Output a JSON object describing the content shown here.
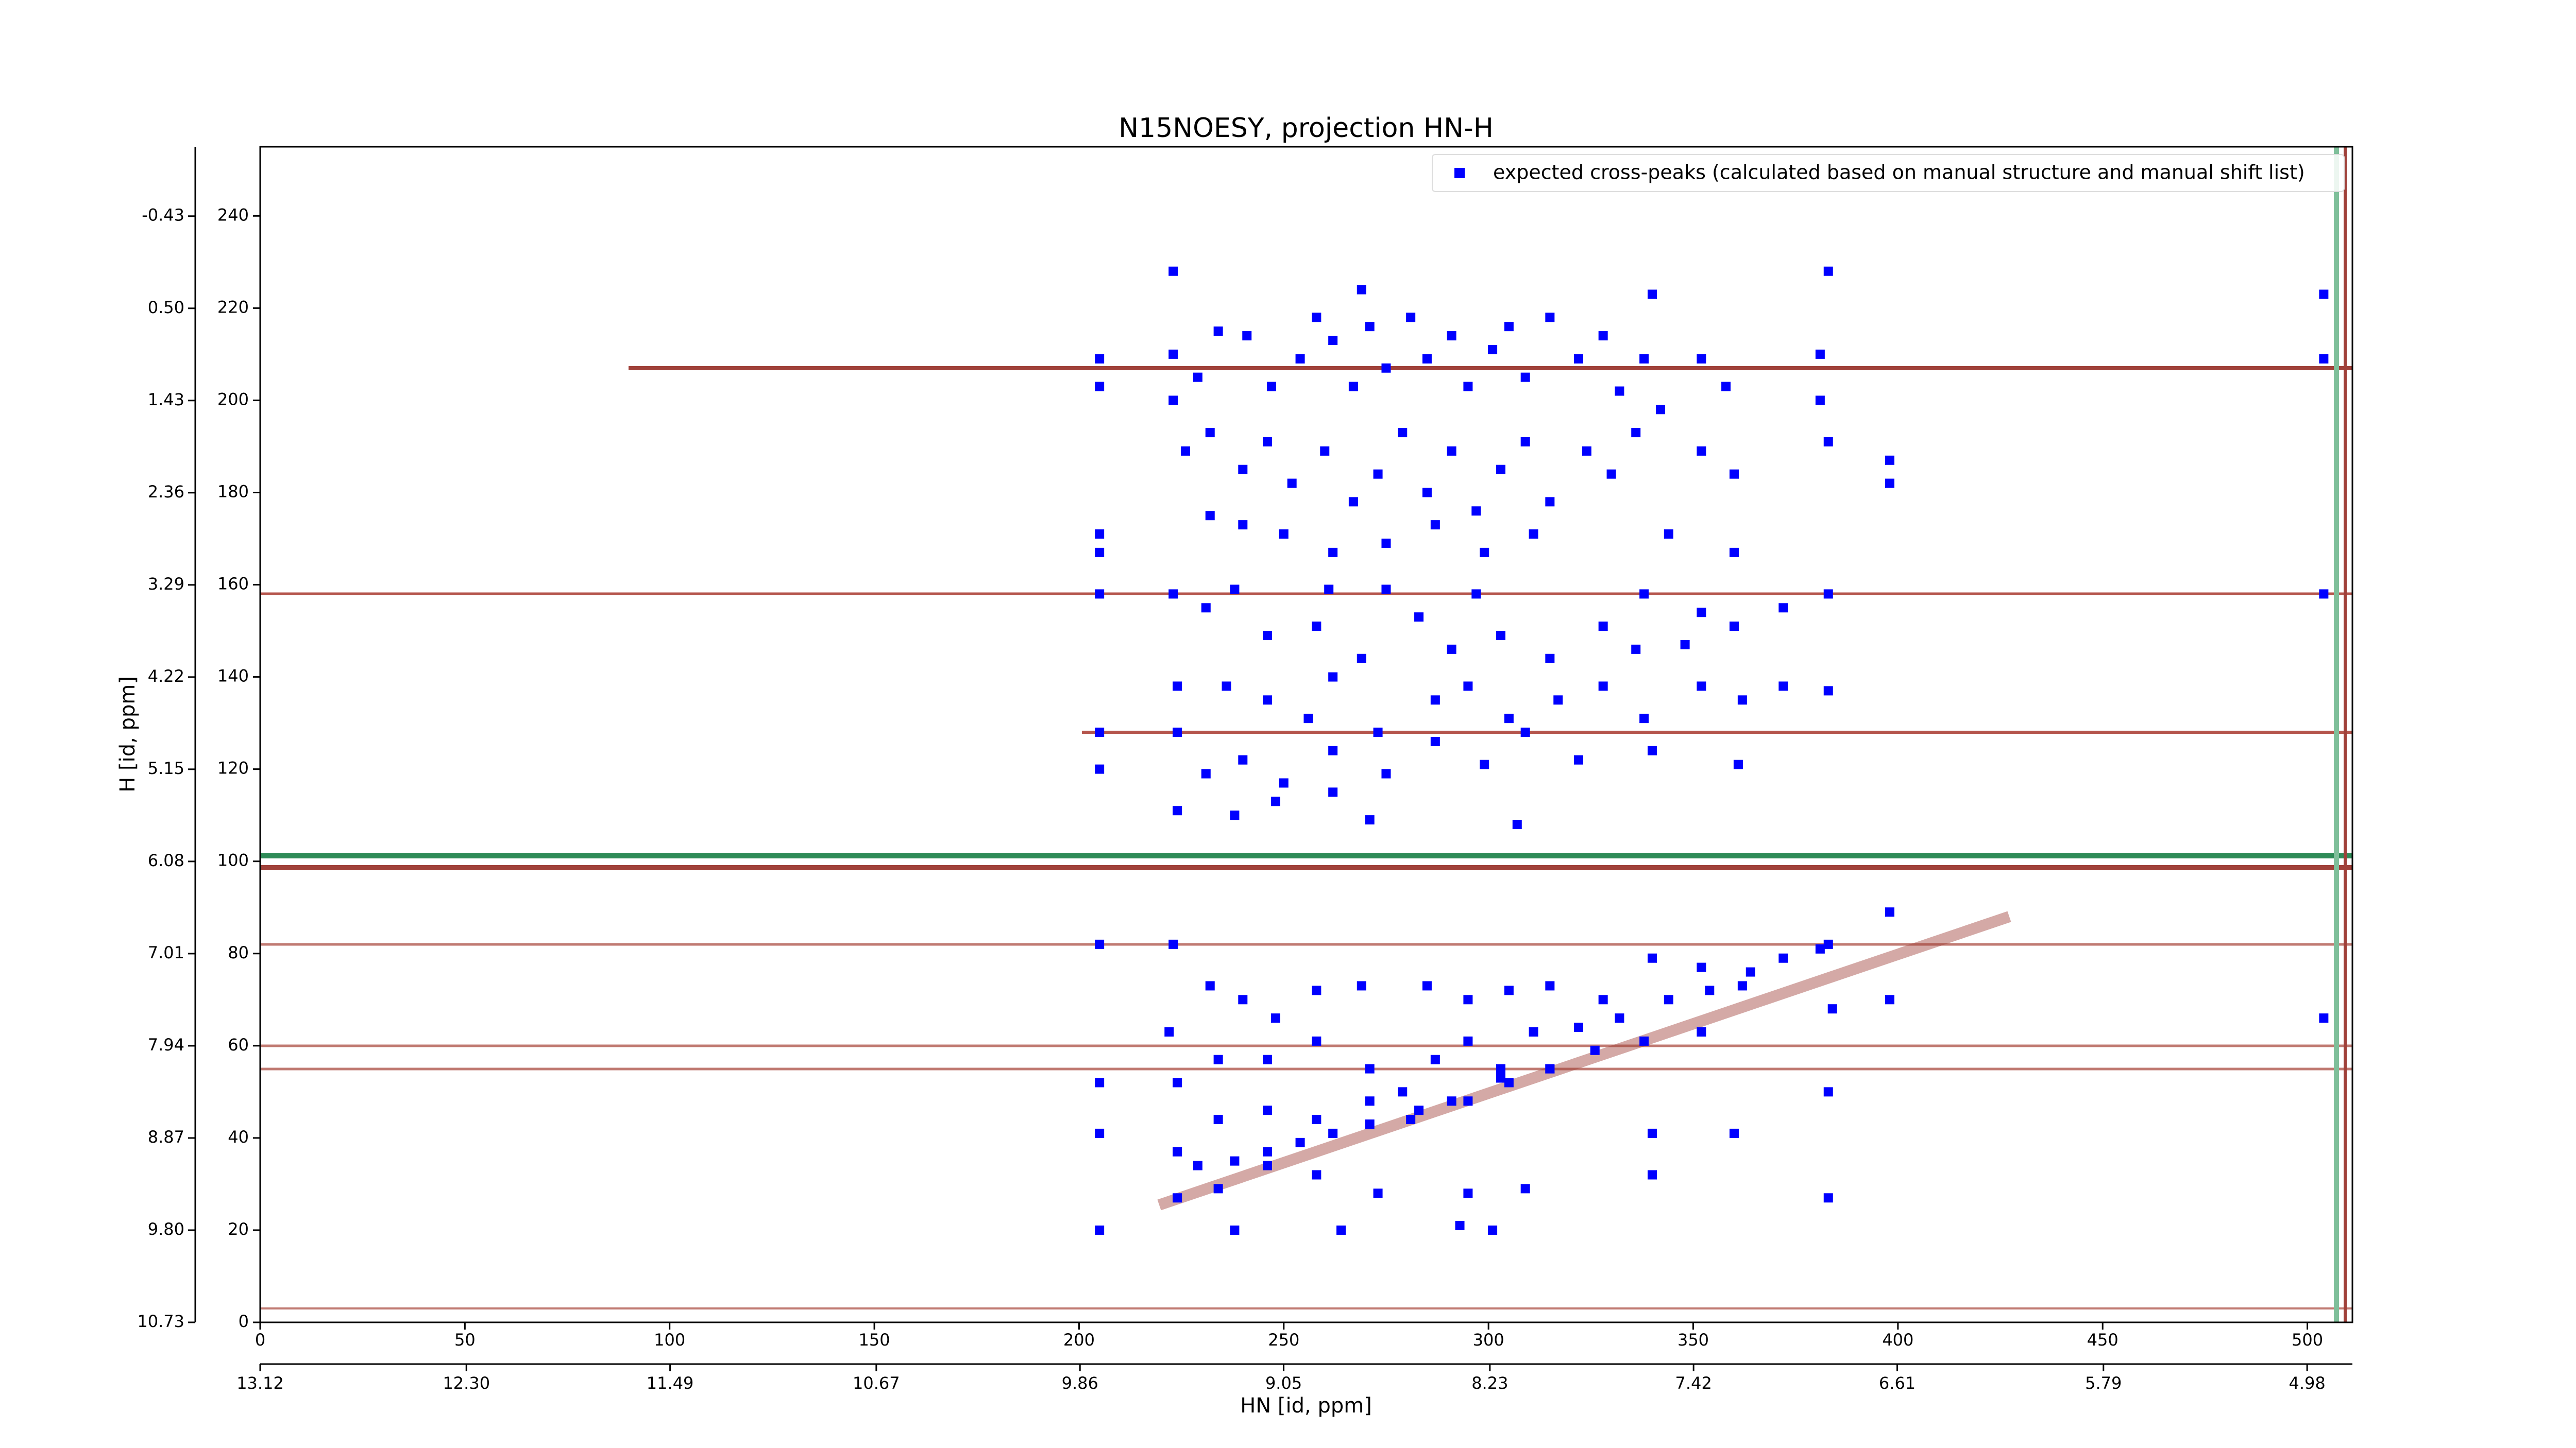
{
  "chart_data": {
    "type": "scatter",
    "title": "N15NOESY, projection HN-H",
    "x_label": "HN [id, ppm]",
    "y_label": "H [id, ppm]",
    "xlim": [
      0,
      511
    ],
    "ylim": [
      0,
      255
    ],
    "xticks": [
      0,
      50,
      100,
      150,
      200,
      250,
      300,
      350,
      400,
      450,
      500
    ],
    "yticks": [
      0,
      20,
      40,
      60,
      80,
      100,
      120,
      140,
      160,
      180,
      200,
      220,
      240
    ],
    "x2lim": [
      13.12,
      4.8
    ],
    "x2ticks": [
      13.12,
      {
        "value": 12.3,
        "label": "12.30"
      },
      11.49,
      10.67,
      9.86,
      9.05,
      8.23,
      7.42,
      6.61,
      5.79,
      4.98
    ],
    "y2lim": [
      10.73,
      -1.13
    ],
    "y2ticks": [
      10.73,
      {
        "value": 9.8,
        "label": "9.80"
      },
      8.87,
      7.94,
      7.01,
      6.08,
      5.15,
      4.22,
      3.29,
      2.36,
      1.43,
      {
        "value": 0.5,
        "label": "0.50"
      },
      -0.43
    ],
    "legend_position": "upper right",
    "series": [
      {
        "name": "expected cross-peaks (calculated based on manual structure and manual shift list)",
        "color": "#0000ff",
        "x": [
          223,
          383,
          269,
          340,
          205,
          223,
          205,
          223,
          229,
          234,
          241,
          247,
          254,
          258,
          262,
          267,
          271,
          275,
          281,
          285,
          291,
          295,
          301,
          305,
          309,
          315,
          322,
          328,
          332,
          338,
          342,
          352,
          358,
          381,
          381,
          226,
          232,
          240,
          246,
          252,
          260,
          267,
          273,
          279,
          285,
          291,
          297,
          303,
          309,
          315,
          324,
          330,
          336,
          352,
          360,
          383,
          398,
          398,
          232,
          240,
          250,
          262,
          275,
          287,
          299,
          311,
          344,
          360,
          205,
          205,
          223,
          238,
          261,
          275,
          297,
          338,
          352,
          231,
          205,
          246,
          258,
          269,
          283,
          291,
          303,
          315,
          328,
          336,
          348,
          360,
          372,
          383,
          504,
          504,
          504,
          224,
          236,
          246,
          256,
          262,
          273,
          287,
          295,
          305,
          317,
          328,
          338,
          352,
          362,
          372,
          383,
          205,
          205,
          224,
          231,
          240,
          250,
          262,
          275,
          287,
          299,
          309,
          322,
          340,
          361,
          224,
          238,
          248,
          262,
          271,
          307,
          205,
          223,
          383,
          398,
          398,
          504,
          232,
          240,
          248,
          258,
          269,
          285,
          295,
          305,
          315,
          328,
          340,
          352,
          364,
          372,
          381,
          384,
          222,
          234,
          246,
          258,
          271,
          279,
          287,
          295,
          303,
          311,
          322,
          332,
          344,
          354,
          362,
          205,
          205,
          224,
          234,
          246,
          258,
          271,
          283,
          295,
          305,
          315,
          326,
          338,
          352,
          383,
          224,
          229,
          238,
          246,
          254,
          262,
          271,
          281,
          291,
          303,
          315,
          340,
          360,
          224,
          234,
          246,
          258,
          273,
          295,
          309,
          340,
          383,
          205,
          238,
          264,
          293,
          301
        ],
        "values": [
          228,
          228,
          224,
          223,
          209,
          210,
          203,
          200,
          205,
          215,
          214,
          203,
          209,
          218,
          213,
          203,
          216,
          207,
          218,
          209,
          214,
          203,
          211,
          216,
          205,
          218,
          209,
          214,
          202,
          209,
          198,
          209,
          203,
          210,
          200,
          189,
          193,
          185,
          191,
          182,
          189,
          178,
          184,
          193,
          180,
          189,
          176,
          185,
          191,
          178,
          189,
          184,
          193,
          189,
          184,
          191,
          187,
          182,
          175,
          173,
          171,
          167,
          169,
          173,
          167,
          171,
          171,
          167,
          171,
          167,
          158,
          159,
          159,
          159,
          158,
          158,
          154,
          155,
          158,
          149,
          151,
          144,
          153,
          146,
          149,
          144,
          151,
          146,
          147,
          151,
          155,
          158,
          223,
          209,
          158,
          138,
          138,
          135,
          131,
          140,
          128,
          135,
          138,
          131,
          135,
          138,
          131,
          138,
          135,
          138,
          137,
          128,
          120,
          128,
          119,
          122,
          117,
          124,
          119,
          126,
          121,
          128,
          122,
          124,
          121,
          111,
          110,
          113,
          115,
          109,
          108,
          82,
          82,
          82,
          89,
          70,
          66,
          73,
          70,
          66,
          72,
          73,
          73,
          70,
          72,
          73,
          70,
          79,
          77,
          76,
          79,
          81,
          68,
          63,
          57,
          57,
          61,
          55,
          50,
          57,
          61,
          55,
          63,
          64,
          66,
          70,
          72,
          73,
          52,
          41,
          52,
          44,
          46,
          44,
          48,
          46,
          48,
          52,
          55,
          59,
          61,
          63,
          50,
          37,
          34,
          35,
          37,
          39,
          41,
          43,
          44,
          48,
          53,
          55,
          41,
          41,
          27,
          29,
          34,
          32,
          28,
          28,
          29,
          32,
          27,
          20,
          20,
          20,
          21,
          20
        ]
      }
    ]
  }
}
